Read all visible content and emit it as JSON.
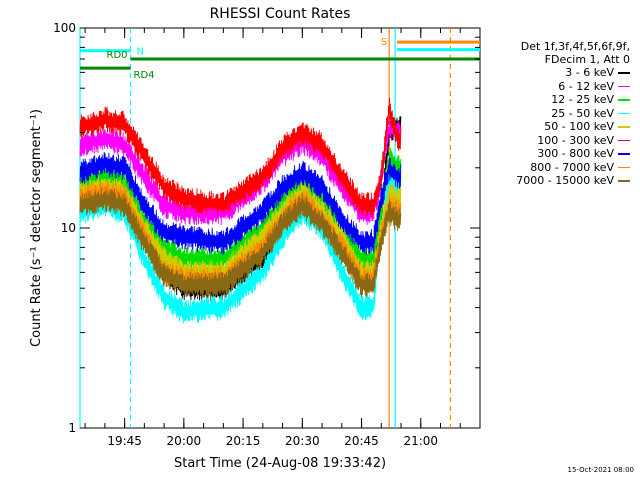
{
  "chart_data": {
    "type": "line",
    "title": "RHESSI Count Rates",
    "xlabel": "Start Time (24-Aug-08 19:33:42)",
    "ylabel": "Count Rate (s⁻¹ detector segment⁻¹)",
    "yscale": "log",
    "ylim": [
      1,
      100
    ],
    "xlim": [
      "19:33:42",
      "21:15:00"
    ],
    "yticks": [
      "1",
      "10",
      "100"
    ],
    "xticks": [
      "19:45",
      "20:00",
      "20:15",
      "20:30",
      "20:45",
      "21:00"
    ],
    "legend_header": [
      "Det 1f,3f,4f,5f,6f,9f,",
      "FDecim 1, Att 0"
    ],
    "legend_position": "right",
    "series": [
      {
        "name": "3 - 6 keV",
        "color": "#000000",
        "x": [
          "19:33:42",
          "19:40",
          "19:45",
          "19:50",
          "19:55",
          "20:00",
          "20:10",
          "20:20",
          "20:25",
          "20:30",
          "20:35",
          "20:40",
          "20:45",
          "20:48",
          "20:50",
          "20:52",
          "20:54",
          "20:55"
        ],
        "y": [
          13,
          15,
          14.5,
          9,
          6,
          5,
          5,
          7,
          10,
          14,
          12,
          8,
          6,
          6,
          12,
          30,
          32,
          32
        ]
      },
      {
        "name": "6 - 12 keV",
        "color": "#ff00ff",
        "x": [
          "19:33:42",
          "19:40",
          "19:45",
          "19:50",
          "19:55",
          "20:00",
          "20:10",
          "20:20",
          "20:25",
          "20:30",
          "20:35",
          "20:40",
          "20:45",
          "20:48",
          "20:50",
          "20:52",
          "20:54",
          "20:55"
        ],
        "y": [
          26,
          28,
          26,
          18,
          13,
          12,
          12,
          17,
          23,
          27,
          23,
          16,
          12,
          12,
          18,
          32,
          30,
          30
        ]
      },
      {
        "name": "12 - 25 keV",
        "color": "#00dd00",
        "x": [
          "19:33:42",
          "19:40",
          "19:45",
          "19:50",
          "19:55",
          "20:00",
          "20:10",
          "20:20",
          "20:25",
          "20:30",
          "20:35",
          "20:40",
          "20:45",
          "20:48",
          "20:50",
          "20:52",
          "20:54",
          "20:55"
        ],
        "y": [
          17,
          18,
          17,
          11,
          8,
          7,
          7,
          10,
          14,
          17,
          14,
          10,
          7,
          7,
          12,
          22,
          20,
          20
        ]
      },
      {
        "name": "25 - 50 keV",
        "color": "#00ffff",
        "x": [
          "19:33:42",
          "19:40",
          "19:45",
          "19:50",
          "19:55",
          "20:00",
          "20:10",
          "20:20",
          "20:25",
          "20:30",
          "20:35",
          "20:40",
          "20:45",
          "20:48",
          "20:50",
          "20:52",
          "20:54",
          "20:55"
        ],
        "y": [
          12,
          13,
          12,
          7,
          4.5,
          3.8,
          4,
          6,
          9,
          12,
          10,
          6,
          4,
          4,
          10,
          17,
          16,
          16
        ]
      },
      {
        "name": "50 - 100 keV",
        "color": "#cccc00",
        "x": [
          "19:33:42",
          "19:40",
          "19:45",
          "19:50",
          "19:55",
          "20:00",
          "20:10",
          "20:20",
          "20:25",
          "20:30",
          "20:35",
          "20:40",
          "20:45",
          "20:48",
          "20:50",
          "20:52",
          "20:54",
          "20:55"
        ],
        "y": [
          15,
          16,
          15,
          10,
          7,
          6,
          6,
          9,
          12,
          15,
          12,
          9,
          6,
          6,
          10,
          15,
          14,
          14
        ]
      },
      {
        "name": "100 - 300 keV",
        "color": "#ff0000",
        "x": [
          "19:33:42",
          "19:40",
          "19:45",
          "19:50",
          "19:55",
          "20:00",
          "20:10",
          "20:20",
          "20:25",
          "20:30",
          "20:35",
          "20:40",
          "20:45",
          "20:48",
          "20:50",
          "20:52",
          "20:54",
          "20:55"
        ],
        "y": [
          32,
          35,
          33,
          23,
          16,
          14,
          13,
          18,
          25,
          30,
          26,
          18,
          13,
          13,
          18,
          40,
          28,
          28
        ]
      },
      {
        "name": "300 - 800 keV",
        "color": "#0000ff",
        "x": [
          "19:33:42",
          "19:40",
          "19:45",
          "19:50",
          "19:55",
          "20:00",
          "20:10",
          "20:20",
          "20:25",
          "20:30",
          "20:35",
          "20:40",
          "20:45",
          "20:48",
          "20:50",
          "20:52",
          "20:54",
          "20:55"
        ],
        "y": [
          19,
          21,
          20,
          13,
          9.5,
          9,
          8.5,
          12,
          16,
          19,
          16,
          11,
          8.5,
          8.5,
          14,
          20,
          18,
          18
        ]
      },
      {
        "name": "800 - 7000 keV",
        "color": "#ff8800",
        "x": [
          "19:33:42",
          "19:40",
          "19:45",
          "19:50",
          "19:55",
          "20:00",
          "20:10",
          "20:20",
          "20:25",
          "20:30",
          "20:35",
          "20:40",
          "20:45",
          "20:48",
          "20:50",
          "20:52",
          "20:54",
          "20:55"
        ],
        "y": [
          14,
          15,
          14,
          9,
          6,
          5.5,
          5.5,
          8,
          11,
          14,
          11,
          8,
          5.5,
          5.5,
          9,
          13,
          12,
          12
        ]
      },
      {
        "name": "7000 - 15000 keV",
        "color": "#8b6914",
        "x": [
          "19:33:42",
          "19:40",
          "19:45",
          "19:50",
          "19:55",
          "20:00",
          "20:10",
          "20:20",
          "20:25",
          "20:30",
          "20:35",
          "20:40",
          "20:45",
          "20:48",
          "20:50",
          "20:52",
          "20:54",
          "20:55"
        ],
        "y": [
          13,
          14,
          13,
          8.5,
          5.8,
          5.2,
          5.2,
          7.5,
          10.5,
          13,
          10.5,
          7.5,
          5.2,
          5.2,
          8.5,
          12,
          11,
          11
        ]
      }
    ],
    "annotations": [
      {
        "label": "N",
        "color": "#00ffff",
        "x_start": "19:33:42",
        "x_end": "19:46:30",
        "y_level": 77
      },
      {
        "label": "RD0",
        "color": "#008800",
        "x_start": "19:46:30",
        "x_end": "21:15:00",
        "y_level": 70
      },
      {
        "label": "RD4",
        "color": "#008800",
        "x_start": "19:33:42",
        "x_end": "19:46:30",
        "y_level": 63
      },
      {
        "label": "S",
        "color": "#ff8800",
        "x_start": "20:54:00",
        "x_end": "21:15:00",
        "y_level": 85
      },
      {
        "label": "",
        "color": "#00ffff",
        "x_start": "20:54:00",
        "x_end": "21:15:00",
        "y_level": 78
      }
    ],
    "vertical_markers": [
      {
        "x": "19:33:42",
        "color": "#00ffff",
        "style": "solid"
      },
      {
        "x": "19:46:30",
        "color": "#00ffff",
        "style": "dashed"
      },
      {
        "x": "20:52:00",
        "color": "#ff8800",
        "style": "solid"
      },
      {
        "x": "20:53:30",
        "color": "#00ffff",
        "style": "solid"
      },
      {
        "x": "21:07:30",
        "color": "#ff8800",
        "style": "dashed"
      }
    ],
    "footer": "15-Oct-2021 08:00"
  }
}
